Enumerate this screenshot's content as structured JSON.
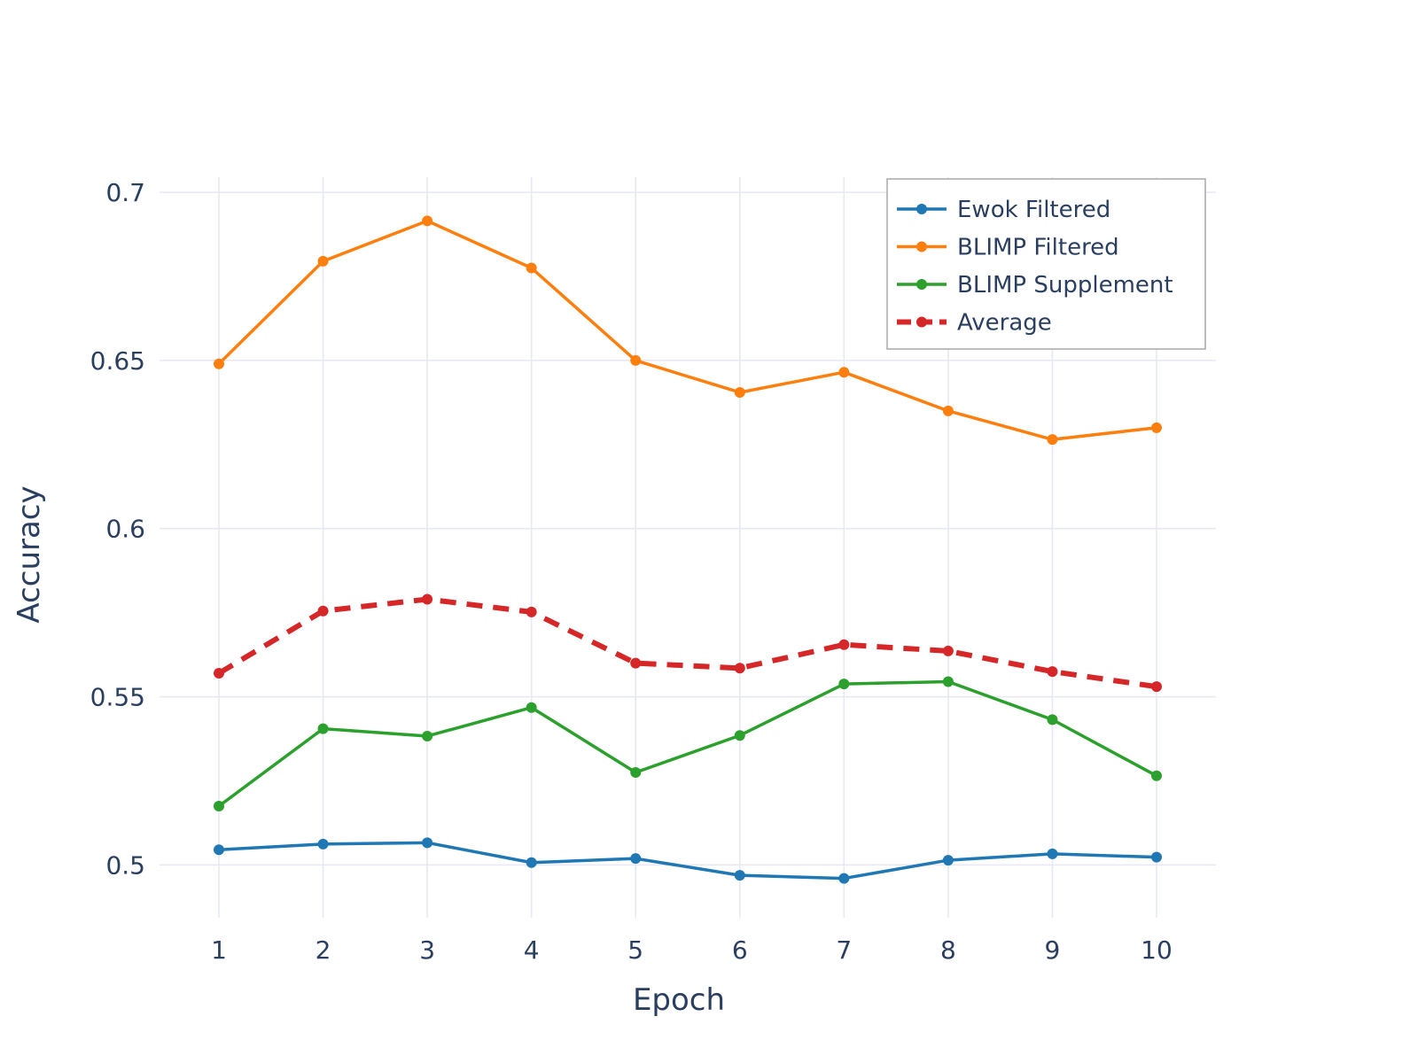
{
  "chart_data": {
    "type": "line",
    "title": "",
    "xlabel": "Epoch",
    "ylabel": "Accuracy",
    "x": [
      1,
      2,
      3,
      4,
      5,
      6,
      7,
      8,
      9,
      10
    ],
    "x_tick_labels": [
      "1",
      "2",
      "3",
      "4",
      "5",
      "6",
      "7",
      "8",
      "9",
      "10"
    ],
    "xlim": [
      0.43,
      10.57
    ],
    "ylim": [
      0.4843,
      0.7045
    ],
    "y_ticks": [
      0.5,
      0.55,
      0.6,
      0.65,
      0.7
    ],
    "y_tick_labels": [
      "0.5",
      "0.55",
      "0.6",
      "0.65",
      "0.7"
    ],
    "grid": true,
    "legend_position": "top-right",
    "series": [
      {
        "name": "Ewok Filtered",
        "color": "#1f77b4",
        "dash": "solid",
        "values": [
          0.5045,
          0.5062,
          0.5066,
          0.5007,
          0.5019,
          0.4969,
          0.496,
          0.5014,
          0.5033,
          0.5023
        ]
      },
      {
        "name": "BLIMP Filtered",
        "color": "#ff7f0e",
        "dash": "solid",
        "values": [
          0.649,
          0.6795,
          0.6915,
          0.6775,
          0.65,
          0.6405,
          0.6465,
          0.635,
          0.6265,
          0.63
        ]
      },
      {
        "name": "BLIMP Supplement",
        "color": "#2ca02c",
        "dash": "solid",
        "values": [
          0.5175,
          0.5405,
          0.5383,
          0.5468,
          0.5275,
          0.5385,
          0.5538,
          0.5545,
          0.5432,
          0.5265
        ]
      },
      {
        "name": "Average",
        "color": "#d62728",
        "dash": "dash",
        "values": [
          0.557,
          0.5755,
          0.579,
          0.5752,
          0.56,
          0.5585,
          0.5655,
          0.5636,
          0.5575,
          0.553
        ]
      }
    ]
  }
}
